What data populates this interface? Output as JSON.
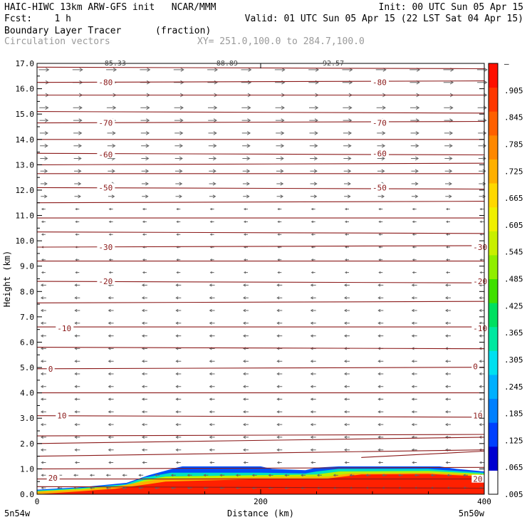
{
  "header": {
    "line1_left": "HAIC-HIWC 13km ARW-GFS init   NCAR/MMM",
    "line1_right": "Init: 00 UTC Sun 05 Apr 15",
    "line2_left": "Fcst:    1 h",
    "line2_right": "Valid: 01 UTC Sun 05 Apr 15 (22 LST Sat 04 Apr 15)",
    "field1_name": "Boundary Layer Tracer",
    "field1_units": "(fraction)",
    "field2_name": "Circulation vectors",
    "xy_info": "XY= 251.0,100.0 to 284.7,100.0"
  },
  "colors": {
    "contour": "#8b1a1a",
    "vector": "#666666",
    "palette": [
      "#ffffff",
      "#0000d0",
      "#0040ff",
      "#0080ff",
      "#00b0ff",
      "#00e0f0",
      "#00e8a0",
      "#00e060",
      "#40e000",
      "#90ee00",
      "#c8f000",
      "#f0f000",
      "#ffd800",
      "#ffb000",
      "#ff8800",
      "#ff6000",
      "#ff3800",
      "#ff1000"
    ]
  },
  "chart_data": {
    "type": "heatmap",
    "xlabel": "Distance (km)",
    "ylabel": "Height (km)",
    "xlim": [
      0,
      400
    ],
    "ylim": [
      0.0,
      17.0
    ],
    "x_ticks": [
      "0",
      "200",
      "400"
    ],
    "y_ticks": [
      "0.0",
      "1.0",
      "2.0",
      "3.0",
      "4.0",
      "5.0",
      "6.0",
      "7.0",
      "8.0",
      "9.0",
      "10.0",
      "11.0",
      "12.0",
      "13.0",
      "14.0",
      "15.0",
      "16.0",
      "17.0"
    ],
    "x_endpoints": [
      "5n54w",
      "5n50w"
    ],
    "top_labels": [
      "85.33",
      "88.89",
      "92.57"
    ],
    "colorbar_labels": [
      "–",
      ".905",
      ".845",
      ".785",
      ".725",
      ".665",
      ".605",
      ".545",
      ".485",
      ".425",
      ".365",
      ".305",
      ".245",
      ".185",
      ".125",
      ".065",
      ".005"
    ],
    "contour_labels": [
      {
        "value": "-80",
        "x": 55,
        "y": 16.25
      },
      {
        "value": "-80",
        "x": 300,
        "y": 16.25
      },
      {
        "value": "-70",
        "x": 55,
        "y": 14.65
      },
      {
        "value": "-70",
        "x": 300,
        "y": 14.65
      },
      {
        "value": "-60",
        "x": 55,
        "y": 13.4
      },
      {
        "value": "-60",
        "x": 300,
        "y": 13.45
      },
      {
        "value": "-50",
        "x": 55,
        "y": 12.1
      },
      {
        "value": "-50",
        "x": 300,
        "y": 12.1
      },
      {
        "value": "-30",
        "x": 55,
        "y": 9.75
      },
      {
        "value": "-30",
        "x": 390,
        "y": 9.75
      },
      {
        "value": "-20",
        "x": 55,
        "y": 8.4
      },
      {
        "value": "-20",
        "x": 390,
        "y": 8.4
      },
      {
        "value": "-10",
        "x": 18,
        "y": 6.55
      },
      {
        "value": "-10",
        "x": 390,
        "y": 6.55
      },
      {
        "value": "0",
        "x": 10,
        "y": 4.95
      },
      {
        "value": "0",
        "x": 390,
        "y": 5.05
      },
      {
        "value": "10",
        "x": 18,
        "y": 3.1
      },
      {
        "value": "10",
        "x": 390,
        "y": 3.1
      },
      {
        "value": "20",
        "x": 10,
        "y": 0.65
      },
      {
        "value": "20",
        "x": 390,
        "y": 0.6
      }
    ]
  }
}
